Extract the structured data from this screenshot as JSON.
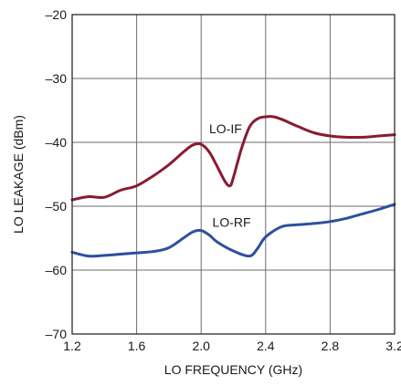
{
  "chart_data": {
    "type": "line",
    "xlabel": "LO FREQUENCY (GHz)",
    "ylabel": "LO LEAKAGE (dBm)",
    "xlim": [
      1.2,
      3.2
    ],
    "ylim": [
      -70,
      -20
    ],
    "grid": true,
    "x_ticks": [
      "1.2",
      "1.6",
      "2.0",
      "2.4",
      "2.8",
      "3.2"
    ],
    "x_tick_values": [
      1.2,
      1.6,
      2.0,
      2.4,
      2.8,
      3.2
    ],
    "y_ticks": [
      "–20",
      "–30",
      "–40",
      "–50",
      "–60",
      "–70"
    ],
    "y_tick_values": [
      -20,
      -30,
      -40,
      -50,
      -60,
      -70
    ],
    "series": [
      {
        "name": "LO-IF",
        "color": "#8b1a32",
        "x": [
          1.2,
          1.3,
          1.4,
          1.5,
          1.6,
          1.7,
          1.8,
          1.9,
          1.95,
          2.0,
          2.05,
          2.1,
          2.15,
          2.18,
          2.2,
          2.25,
          2.3,
          2.35,
          2.4,
          2.45,
          2.5,
          2.6,
          2.7,
          2.8,
          2.9,
          3.0,
          3.1,
          3.2
        ],
        "y": [
          -49.0,
          -48.5,
          -48.6,
          -47.5,
          -46.8,
          -45.3,
          -43.5,
          -41.3,
          -40.4,
          -40.3,
          -41.5,
          -43.8,
          -46.2,
          -46.8,
          -45.5,
          -41.0,
          -37.6,
          -36.3,
          -36.0,
          -36.0,
          -36.4,
          -37.5,
          -38.5,
          -39.0,
          -39.2,
          -39.2,
          -39.0,
          -38.8
        ]
      },
      {
        "name": "LO-RF",
        "color": "#2d4f9e",
        "x": [
          1.2,
          1.3,
          1.4,
          1.5,
          1.6,
          1.7,
          1.8,
          1.9,
          1.95,
          2.0,
          2.05,
          2.1,
          2.2,
          2.3,
          2.35,
          2.4,
          2.5,
          2.6,
          2.7,
          2.8,
          2.9,
          3.0,
          3.1,
          3.2
        ],
        "y": [
          -57.2,
          -57.8,
          -57.7,
          -57.5,
          -57.3,
          -57.1,
          -56.5,
          -54.8,
          -54.0,
          -53.8,
          -54.5,
          -55.6,
          -57.0,
          -57.8,
          -56.6,
          -54.8,
          -53.2,
          -52.9,
          -52.7,
          -52.4,
          -51.9,
          -51.2,
          -50.5,
          -49.7
        ]
      }
    ]
  }
}
